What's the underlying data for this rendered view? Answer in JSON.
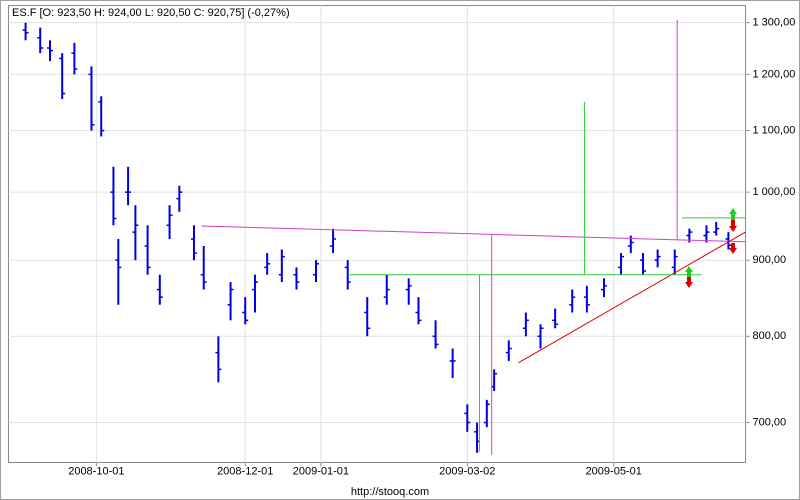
{
  "chart_data": {
    "type": "ohlc",
    "title": "ES.F [O: 923,50  H: 924,00  L: 920,50  C: 920,75] (-0,27%)",
    "footer": "http://stooq.com",
    "color": "#0000dd",
    "log_y": true,
    "grid": true,
    "x": [
      "2008-09-02",
      "2008-09-08",
      "2008-09-12",
      "2008-09-17",
      "2008-09-22",
      "2008-09-29",
      "2008-10-03",
      "2008-10-08",
      "2008-10-10",
      "2008-10-14",
      "2008-10-17",
      "2008-10-22",
      "2008-10-27",
      "2008-10-31",
      "2008-11-04",
      "2008-11-10",
      "2008-11-14",
      "2008-11-20",
      "2008-11-25",
      "2008-12-01",
      "2008-12-05",
      "2008-12-10",
      "2008-12-16",
      "2008-12-22",
      "2008-12-30",
      "2009-01-06",
      "2009-01-12",
      "2009-01-20",
      "2009-01-28",
      "2009-02-06",
      "2009-02-10",
      "2009-02-17",
      "2009-02-24",
      "2009-03-02",
      "2009-03-06",
      "2009-03-10",
      "2009-03-13",
      "2009-03-19",
      "2009-03-26",
      "2009-04-01",
      "2009-04-07",
      "2009-04-14",
      "2009-04-20",
      "2009-04-27",
      "2009-05-04",
      "2009-05-08",
      "2009-05-13",
      "2009-05-19",
      "2009-05-26",
      "2009-06-01",
      "2009-06-08",
      "2009-06-12",
      "2009-06-17"
    ],
    "open": [
      1285,
      1270,
      1250,
      1230,
      1240,
      1200,
      1150,
      1000,
      900,
      1000,
      940,
      920,
      860,
      950,
      990,
      930,
      880,
      780,
      840,
      830,
      860,
      890,
      880,
      880,
      880,
      920,
      890,
      830,
      850,
      860,
      830,
      800,
      770,
      710,
      690,
      700,
      740,
      780,
      810,
      800,
      820,
      840,
      850,
      860,
      890,
      920,
      900,
      900,
      890,
      935,
      935,
      940,
      930
    ],
    "high": [
      1300,
      1290,
      1265,
      1240,
      1260,
      1215,
      1160,
      1040,
      930,
      1040,
      980,
      950,
      880,
      980,
      1010,
      950,
      920,
      800,
      870,
      850,
      880,
      910,
      915,
      890,
      900,
      945,
      900,
      850,
      880,
      875,
      850,
      820,
      785,
      720,
      700,
      725,
      760,
      795,
      830,
      815,
      835,
      860,
      865,
      875,
      910,
      935,
      910,
      915,
      915,
      945,
      950,
      955,
      940
    ],
    "low": [
      1265,
      1240,
      1225,
      1155,
      1200,
      1100,
      1090,
      950,
      840,
      980,
      900,
      880,
      840,
      930,
      970,
      900,
      860,
      745,
      820,
      815,
      830,
      880,
      870,
      860,
      870,
      910,
      860,
      800,
      840,
      840,
      815,
      785,
      750,
      690,
      668,
      695,
      735,
      770,
      800,
      785,
      810,
      830,
      830,
      850,
      880,
      910,
      880,
      890,
      880,
      925,
      925,
      935,
      915
    ],
    "close": [
      1280,
      1250,
      1245,
      1165,
      1210,
      1110,
      1100,
      960,
      890,
      1000,
      950,
      890,
      850,
      965,
      1000,
      910,
      870,
      760,
      860,
      820,
      870,
      895,
      905,
      870,
      895,
      930,
      870,
      810,
      860,
      865,
      820,
      790,
      770,
      700,
      680,
      720,
      755,
      785,
      820,
      810,
      815,
      850,
      840,
      865,
      905,
      925,
      885,
      905,
      905,
      940,
      940,
      945,
      921
    ],
    "lines": [
      {
        "color": "#cc44cc",
        "x": [
          "2008-11-13",
          "2009-06-24"
        ],
        "y": [
          949,
          926
        ]
      },
      {
        "color": "#dd0000",
        "x": [
          "2009-03-23",
          "2009-06-24"
        ],
        "y": [
          768,
          940
        ]
      },
      {
        "color": "#33cc33",
        "x": [
          "2009-01-12",
          "2009-06-06"
        ],
        "y": [
          880,
          880
        ]
      },
      {
        "color": "#33cc33",
        "x": [
          "2009-03-07",
          "2009-03-07"
        ],
        "y": [
          880,
          669
        ]
      },
      {
        "color": "#33cc33",
        "x": [
          "2009-04-19",
          "2009-04-19"
        ],
        "y": [
          1150,
          880
        ]
      },
      {
        "color": "#cc44cc",
        "x": [
          "2009-03-12",
          "2009-03-12"
        ],
        "y": [
          937,
          666
        ]
      },
      {
        "color": "#cc44cc",
        "x": [
          "2009-05-27",
          "2009-05-27"
        ],
        "y": [
          1305,
          928
        ]
      },
      {
        "color": "#33cc33",
        "x": [
          "2009-05-29",
          "2009-06-24"
        ],
        "y": [
          961,
          961
        ]
      }
    ],
    "xlim": [
      "2008-08-26",
      "2009-06-24"
    ],
    "xticks": [
      "2008-10-01",
      "2008-12-01",
      "2009-01-01",
      "2009-03-02",
      "2009-05-01"
    ],
    "ylim": [
      658,
      1335
    ],
    "yticks": [
      {
        "value": 700,
        "label": "700,00"
      },
      {
        "value": 800,
        "label": "800,00"
      },
      {
        "value": 900,
        "label": "900,00"
      },
      {
        "value": 1000,
        "label": "1 000,00"
      },
      {
        "value": 1100,
        "label": "1 100,00"
      },
      {
        "value": 1200,
        "label": "1 200,00"
      },
      {
        "value": 1300,
        "label": "1 300,00"
      }
    ]
  }
}
